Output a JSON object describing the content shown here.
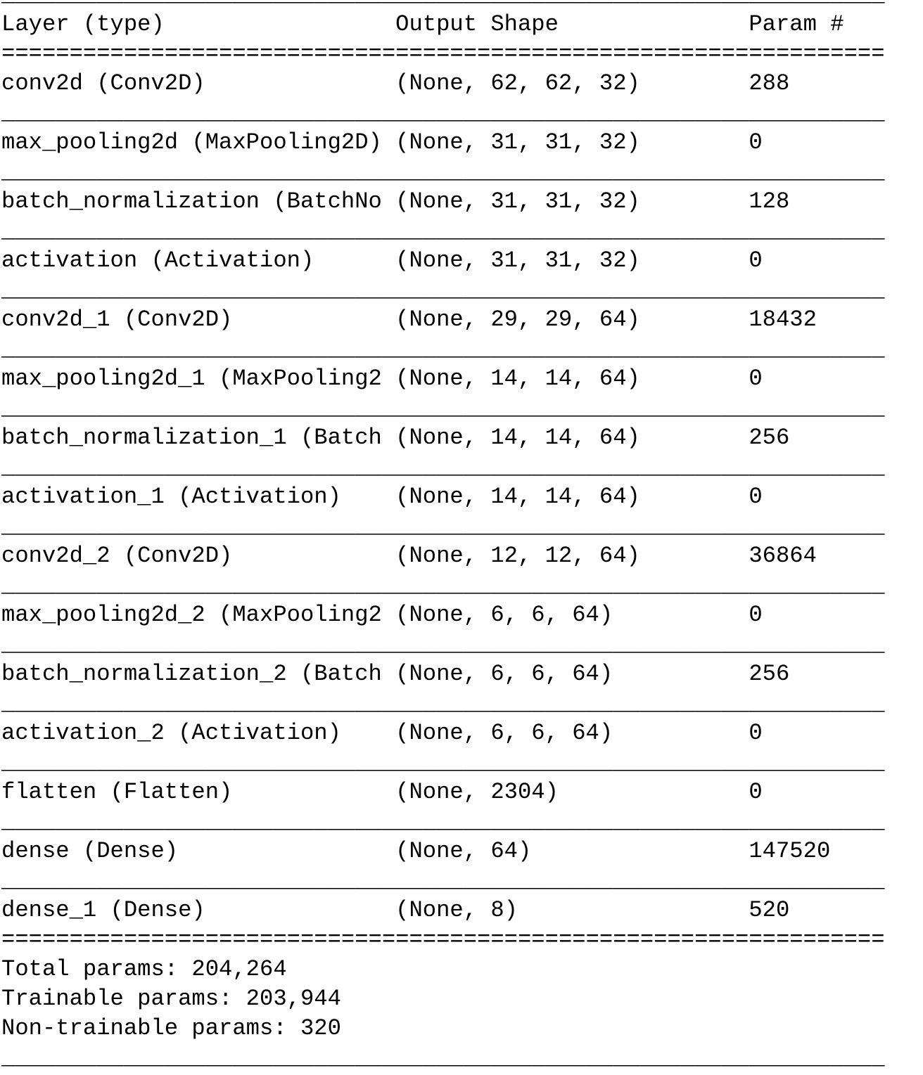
{
  "header": {
    "layer": "Layer (type)",
    "shape": "Output Shape",
    "params": "Param #"
  },
  "rows": [
    {
      "layer": "conv2d (Conv2D)",
      "shape": "(None, 62, 62, 32)",
      "params": "288"
    },
    {
      "layer": "max_pooling2d (MaxPooling2D)",
      "shape": "(None, 31, 31, 32)",
      "params": "0"
    },
    {
      "layer": "batch_normalization (BatchNo",
      "shape": "(None, 31, 31, 32)",
      "params": "128"
    },
    {
      "layer": "activation (Activation)",
      "shape": "(None, 31, 31, 32)",
      "params": "0"
    },
    {
      "layer": "conv2d_1 (Conv2D)",
      "shape": "(None, 29, 29, 64)",
      "params": "18432"
    },
    {
      "layer": "max_pooling2d_1 (MaxPooling2",
      "shape": "(None, 14, 14, 64)",
      "params": "0"
    },
    {
      "layer": "batch_normalization_1 (Batch",
      "shape": "(None, 14, 14, 64)",
      "params": "256"
    },
    {
      "layer": "activation_1 (Activation)",
      "shape": "(None, 14, 14, 64)",
      "params": "0"
    },
    {
      "layer": "conv2d_2 (Conv2D)",
      "shape": "(None, 12, 12, 64)",
      "params": "36864"
    },
    {
      "layer": "max_pooling2d_2 (MaxPooling2",
      "shape": "(None, 6, 6, 64)",
      "params": "0"
    },
    {
      "layer": "batch_normalization_2 (Batch",
      "shape": "(None, 6, 6, 64)",
      "params": "256"
    },
    {
      "layer": "activation_2 (Activation)",
      "shape": "(None, 6, 6, 64)",
      "params": "0"
    },
    {
      "layer": "flatten (Flatten)",
      "shape": "(None, 2304)",
      "params": "0"
    },
    {
      "layer": "dense (Dense)",
      "shape": "(None, 64)",
      "params": "147520"
    },
    {
      "layer": "dense_1 (Dense)",
      "shape": "(None, 8)",
      "params": "520"
    }
  ],
  "totals": {
    "total": "Total params: 204,264",
    "trainable": "Trainable params: 203,944",
    "non_trainable": "Non-trainable params: 320"
  }
}
